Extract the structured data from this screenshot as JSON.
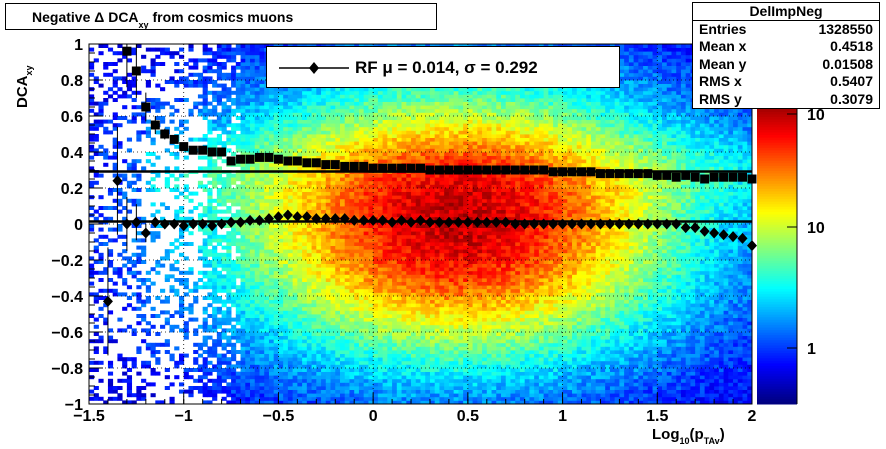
{
  "title": {
    "prefix": "Negative ",
    "delta": "Δ",
    "main": " DCA",
    "sub": "xy",
    "suffix": "  from cosmics muons"
  },
  "stats": {
    "name": "DelImpNeg",
    "rows": [
      {
        "label": "Entries",
        "value": "1328550"
      },
      {
        "label": "Mean x",
        "value": "0.4518"
      },
      {
        "label": "Mean y",
        "value": "0.01508"
      },
      {
        "label": "RMS x",
        "value": "0.5407"
      },
      {
        "label": "RMS y",
        "value": "0.3079"
      }
    ]
  },
  "legend": {
    "text": "RF μ =  0.014, σ =   0.292"
  },
  "axes": {
    "ylabel": {
      "main": "DCA",
      "sub": "xy"
    },
    "xlabel": {
      "main": "Log",
      "sub": "10",
      "mid": "(p",
      "sub2": "TAv",
      "end": ")"
    }
  },
  "colors": {
    "marker": "#000000",
    "frame": "#000000"
  },
  "chart_data": {
    "type": "heatmap",
    "xlim": [
      -1.5,
      2
    ],
    "ylim": [
      -1,
      1
    ],
    "x_ticks": [
      "−1.5",
      "−1",
      "−0.5",
      "0",
      "0.5",
      "1",
      "1.5",
      "2"
    ],
    "y_ticks": [
      "−1",
      "−0.8",
      "−0.6",
      "−0.4",
      "−0.2",
      "0",
      "0.2",
      "0.4",
      "0.6",
      "0.8",
      "1"
    ],
    "z_scale": "log",
    "z_ticks": [
      "1",
      "10",
      "10"
    ],
    "grid": true,
    "density": {
      "center_x": 0.45,
      "center_y": 0.0,
      "rms_x": 0.54,
      "rms_y": 0.31
    },
    "series": [
      {
        "marker": "square",
        "x": [
          -1.3,
          -1.25,
          -1.2,
          -1.15,
          -1.1,
          -1.05,
          -1.0,
          -0.95,
          -0.9,
          -0.85,
          -0.8,
          -0.75,
          -0.7,
          -0.65,
          -0.6,
          -0.55,
          -0.5,
          -0.45,
          -0.4,
          -0.35,
          -0.3,
          -0.25,
          -0.2,
          -0.15,
          -0.1,
          -0.05,
          0.0,
          0.05,
          0.1,
          0.15,
          0.2,
          0.25,
          0.3,
          0.35,
          0.4,
          0.45,
          0.5,
          0.55,
          0.6,
          0.65,
          0.7,
          0.75,
          0.8,
          0.85,
          0.9,
          0.95,
          1.0,
          1.05,
          1.1,
          1.15,
          1.2,
          1.25,
          1.3,
          1.35,
          1.4,
          1.45,
          1.5,
          1.55,
          1.6,
          1.65,
          1.7,
          1.75,
          1.8,
          1.85,
          1.9,
          1.95,
          2.0
        ],
        "y": [
          0.96,
          0.85,
          0.65,
          0.55,
          0.5,
          0.47,
          0.43,
          0.41,
          0.41,
          0.4,
          0.4,
          0.35,
          0.36,
          0.36,
          0.37,
          0.37,
          0.36,
          0.35,
          0.35,
          0.34,
          0.34,
          0.33,
          0.33,
          0.32,
          0.32,
          0.32,
          0.31,
          0.31,
          0.31,
          0.31,
          0.31,
          0.31,
          0.3,
          0.3,
          0.3,
          0.3,
          0.3,
          0.3,
          0.3,
          0.3,
          0.3,
          0.3,
          0.3,
          0.3,
          0.3,
          0.29,
          0.29,
          0.29,
          0.29,
          0.29,
          0.28,
          0.28,
          0.28,
          0.28,
          0.28,
          0.28,
          0.27,
          0.27,
          0.26,
          0.27,
          0.26,
          0.25,
          0.26,
          0.26,
          0.26,
          0.26,
          0.25
        ],
        "yerr": [
          0.2,
          0.15,
          0.08,
          0.05,
          0.03,
          0.02,
          0.01,
          0.01,
          0.01,
          0.01,
          0.01,
          0.01,
          0.01,
          0.01,
          0.01,
          0.01,
          0.01,
          0.01,
          0.01,
          0.01,
          0.01,
          0.01,
          0.01,
          0.01,
          0.01,
          0.01,
          0.01,
          0.01,
          0.01,
          0.01,
          0.01,
          0.01,
          0.01,
          0.01,
          0.01,
          0.01,
          0.01,
          0.01,
          0.01,
          0.01,
          0.01,
          0.01,
          0.01,
          0.01,
          0.01,
          0.01,
          0.01,
          0.01,
          0.01,
          0.01,
          0.01,
          0.01,
          0.01,
          0.01,
          0.01,
          0.01,
          0.01,
          0.01,
          0.01,
          0.01,
          0.01,
          0.01,
          0.01,
          0.01,
          0.01,
          0.01,
          0.01
        ]
      },
      {
        "marker": "diamond",
        "x": [
          -1.4,
          -1.35,
          -1.3,
          -1.25,
          -1.2,
          -1.15,
          -1.1,
          -1.05,
          -1.0,
          -0.95,
          -0.9,
          -0.85,
          -0.8,
          -0.75,
          -0.7,
          -0.65,
          -0.6,
          -0.55,
          -0.5,
          -0.45,
          -0.4,
          -0.35,
          -0.3,
          -0.25,
          -0.2,
          -0.15,
          -0.1,
          -0.05,
          0.0,
          0.05,
          0.1,
          0.15,
          0.2,
          0.25,
          0.3,
          0.35,
          0.4,
          0.45,
          0.5,
          0.55,
          0.6,
          0.65,
          0.7,
          0.75,
          0.8,
          0.85,
          0.9,
          0.95,
          1.0,
          1.05,
          1.1,
          1.15,
          1.2,
          1.25,
          1.3,
          1.35,
          1.4,
          1.45,
          1.5,
          1.55,
          1.6,
          1.65,
          1.7,
          1.75,
          1.8,
          1.85,
          1.9,
          1.95,
          2.0
        ],
        "y": [
          -0.43,
          0.24,
          0.0,
          0.01,
          -0.05,
          0.01,
          0.0,
          0.0,
          -0.01,
          0.0,
          0.0,
          -0.01,
          0.0,
          0.01,
          0.01,
          0.02,
          0.02,
          0.03,
          0.04,
          0.05,
          0.04,
          0.04,
          0.03,
          0.03,
          0.03,
          0.03,
          0.02,
          0.02,
          0.02,
          0.02,
          0.01,
          0.02,
          0.01,
          0.02,
          0.01,
          0.01,
          0.01,
          0.01,
          0.01,
          0.01,
          0.01,
          0.01,
          0.01,
          0.0,
          0.0,
          0.0,
          0.0,
          0.0,
          0.0,
          0.0,
          0.0,
          0.0,
          0.0,
          0.0,
          0.0,
          0.0,
          0.0,
          0.0,
          0.0,
          0.0,
          0.0,
          -0.02,
          -0.02,
          -0.04,
          -0.05,
          -0.06,
          -0.07,
          -0.08,
          -0.12
        ],
        "yerr": [
          0.3,
          0.3,
          0.15,
          0.1,
          0.05,
          0.03,
          0.02,
          0.01,
          0.01,
          0.01,
          0.01,
          0.01,
          0.01,
          0.01,
          0.01,
          0.01,
          0.01,
          0.01,
          0.01,
          0.01,
          0.01,
          0.01,
          0.01,
          0.01,
          0.01,
          0.01,
          0.01,
          0.01,
          0.01,
          0.01,
          0.01,
          0.01,
          0.01,
          0.01,
          0.01,
          0.01,
          0.01,
          0.01,
          0.01,
          0.01,
          0.01,
          0.01,
          0.01,
          0.01,
          0.01,
          0.01,
          0.01,
          0.01,
          0.01,
          0.01,
          0.01,
          0.01,
          0.01,
          0.01,
          0.01,
          0.01,
          0.01,
          0.01,
          0.01,
          0.01,
          0.01,
          0.01,
          0.01,
          0.01,
          0.01,
          0.01,
          0.01,
          0.01,
          0.01
        ]
      }
    ],
    "fit_lines": [
      {
        "y": 0.292
      },
      {
        "y": 0.014
      }
    ]
  }
}
